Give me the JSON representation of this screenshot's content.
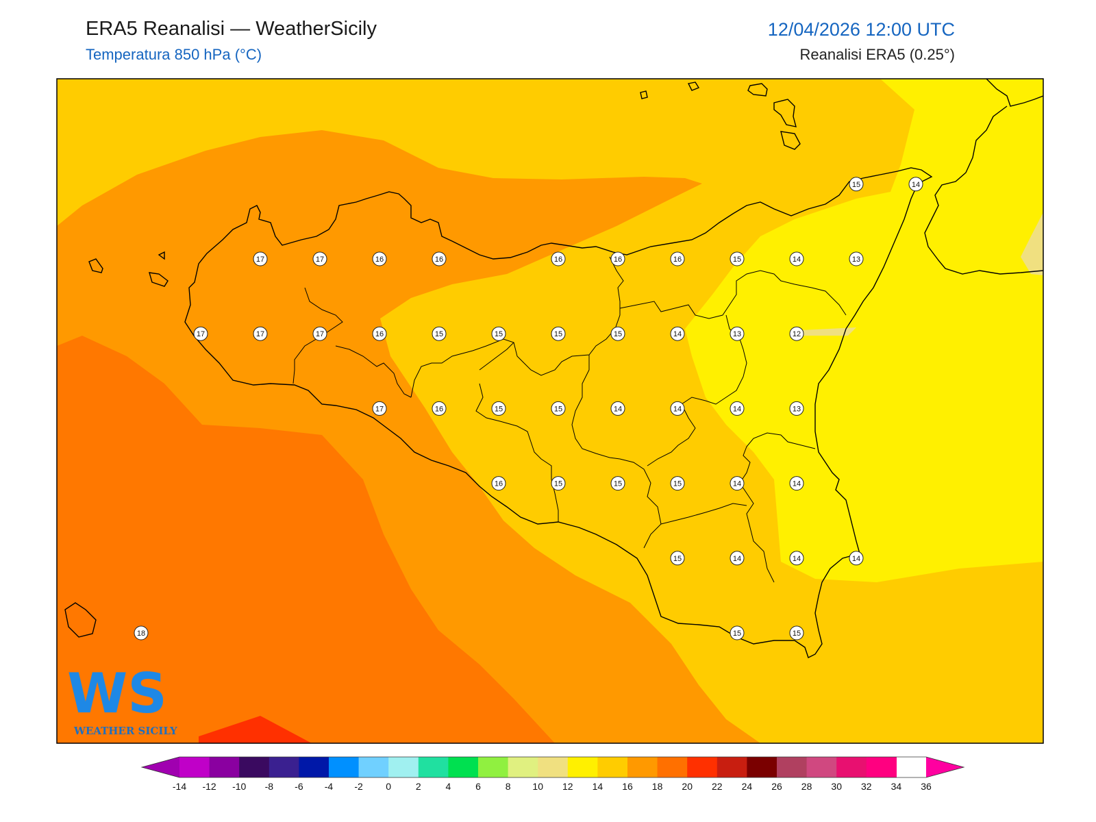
{
  "header": {
    "title": "ERA5 Reanalisi — WeatherSicily",
    "subtitle": "Temperatura 850 hPa (°C)",
    "datetime": "12/04/2026 12:00 UTC",
    "source": "Reanalisi ERA5 (0.25°)"
  },
  "logo": {
    "text": "WEATHER SICILY",
    "mark": "WS"
  },
  "colorbar": {
    "ticks": [
      "-14",
      "-12",
      "-10",
      "-8",
      "-6",
      "-4",
      "-2",
      "0",
      "2",
      "4",
      "6",
      "8",
      "10",
      "12",
      "14",
      "16",
      "18",
      "20",
      "22",
      "24",
      "26",
      "28",
      "30",
      "32",
      "34",
      "36"
    ],
    "colors": [
      "#c000c8",
      "#8a00a0",
      "#3a0a60",
      "#3a2090",
      "#0018a8",
      "#0090ff",
      "#70d0ff",
      "#a0f0f0",
      "#20e0a0",
      "#00e050",
      "#90f040",
      "#e0f080",
      "#f0e080",
      "#fff000",
      "#ffcc00",
      "#ff9900",
      "#ff7000",
      "#ff3000",
      "#c81e10",
      "#7a0000",
      "#b04060",
      "#d04880",
      "#e81070",
      "#ff0080"
    ],
    "under_color": "#a000b0",
    "over_color": "#ff00a0"
  },
  "point_values": [
    {
      "lon": 12.6,
      "lat": 38.2,
      "value": "17"
    },
    {
      "lon": 12.9,
      "lat": 38.2,
      "value": "17"
    },
    {
      "lon": 13.2,
      "lat": 38.2,
      "value": "16"
    },
    {
      "lon": 13.5,
      "lat": 38.2,
      "value": "16"
    },
    {
      "lon": 14.1,
      "lat": 38.2,
      "value": "16"
    },
    {
      "lon": 14.4,
      "lat": 38.2,
      "value": "16"
    },
    {
      "lon": 14.7,
      "lat": 38.2,
      "value": "16"
    },
    {
      "lon": 15.0,
      "lat": 38.2,
      "value": "15"
    },
    {
      "lon": 15.3,
      "lat": 38.2,
      "value": "14"
    },
    {
      "lon": 15.6,
      "lat": 38.2,
      "value": "13"
    },
    {
      "lon": 15.6,
      "lat": 38.6,
      "value": "15"
    },
    {
      "lon": 15.9,
      "lat": 38.6,
      "value": "14"
    },
    {
      "lon": 12.3,
      "lat": 37.8,
      "value": "17"
    },
    {
      "lon": 12.6,
      "lat": 37.8,
      "value": "17"
    },
    {
      "lon": 12.9,
      "lat": 37.8,
      "value": "17"
    },
    {
      "lon": 13.2,
      "lat": 37.8,
      "value": "16"
    },
    {
      "lon": 13.5,
      "lat": 37.8,
      "value": "15"
    },
    {
      "lon": 13.8,
      "lat": 37.8,
      "value": "15"
    },
    {
      "lon": 14.1,
      "lat": 37.8,
      "value": "15"
    },
    {
      "lon": 14.4,
      "lat": 37.8,
      "value": "15"
    },
    {
      "lon": 14.7,
      "lat": 37.8,
      "value": "14"
    },
    {
      "lon": 15.0,
      "lat": 37.8,
      "value": "13"
    },
    {
      "lon": 15.3,
      "lat": 37.8,
      "value": "12"
    },
    {
      "lon": 13.2,
      "lat": 37.4,
      "value": "17"
    },
    {
      "lon": 13.5,
      "lat": 37.4,
      "value": "16"
    },
    {
      "lon": 13.8,
      "lat": 37.4,
      "value": "15"
    },
    {
      "lon": 14.1,
      "lat": 37.4,
      "value": "15"
    },
    {
      "lon": 14.4,
      "lat": 37.4,
      "value": "14"
    },
    {
      "lon": 14.7,
      "lat": 37.4,
      "value": "14"
    },
    {
      "lon": 15.0,
      "lat": 37.4,
      "value": "14"
    },
    {
      "lon": 15.3,
      "lat": 37.4,
      "value": "13"
    },
    {
      "lon": 13.8,
      "lat": 37.0,
      "value": "16"
    },
    {
      "lon": 14.1,
      "lat": 37.0,
      "value": "15"
    },
    {
      "lon": 14.4,
      "lat": 37.0,
      "value": "15"
    },
    {
      "lon": 14.7,
      "lat": 37.0,
      "value": "15"
    },
    {
      "lon": 15.0,
      "lat": 37.0,
      "value": "14"
    },
    {
      "lon": 15.3,
      "lat": 37.0,
      "value": "14"
    },
    {
      "lon": 14.7,
      "lat": 36.6,
      "value": "15"
    },
    {
      "lon": 15.0,
      "lat": 36.6,
      "value": "14"
    },
    {
      "lon": 15.3,
      "lat": 36.6,
      "value": "14"
    },
    {
      "lon": 15.6,
      "lat": 36.6,
      "value": "14"
    },
    {
      "lon": 15.0,
      "lat": 36.2,
      "value": "15"
    },
    {
      "lon": 15.3,
      "lat": 36.2,
      "value": "15"
    },
    {
      "lon": 12.0,
      "lat": 36.2,
      "value": "18"
    }
  ]
}
